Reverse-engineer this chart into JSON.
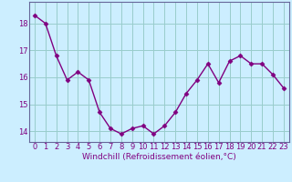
{
  "x": [
    0,
    1,
    2,
    3,
    4,
    5,
    6,
    7,
    8,
    9,
    10,
    11,
    12,
    13,
    14,
    15,
    16,
    17,
    18,
    19,
    20,
    21,
    22,
    23
  ],
  "y": [
    18.3,
    18.0,
    16.8,
    15.9,
    16.2,
    15.9,
    14.7,
    14.1,
    13.9,
    14.1,
    14.2,
    13.9,
    14.2,
    14.7,
    15.4,
    15.9,
    16.5,
    15.8,
    16.6,
    16.8,
    16.5,
    16.5,
    16.1,
    15.6
  ],
  "line_color": "#800080",
  "marker": "D",
  "marker_size": 2.5,
  "bg_color": "#cceeff",
  "grid_color": "#99cccc",
  "xlabel": "Windchill (Refroidissement éolien,°C)",
  "xlabel_fontsize": 6.5,
  "ylabel_ticks": [
    14,
    15,
    16,
    17,
    18
  ],
  "xlim": [
    -0.5,
    23.5
  ],
  "ylim": [
    13.6,
    18.8
  ],
  "tick_fontsize": 6.0,
  "line_width": 1.0,
  "text_color": "#800080"
}
